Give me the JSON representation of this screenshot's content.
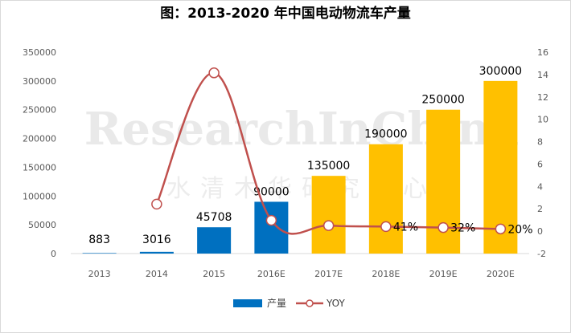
{
  "chart_data": {
    "type": "bar",
    "title": "图：2013-2020 年中国电动物流车产量",
    "categories": [
      "2013",
      "2014",
      "2015",
      "2016E",
      "2017E",
      "2018E",
      "2019E",
      "2020E"
    ],
    "series": [
      {
        "name": "产量",
        "type": "bar",
        "axis": "left",
        "values": [
          883,
          3016,
          45708,
          90000,
          135000,
          190000,
          250000,
          300000
        ],
        "colors": [
          "#0070c0",
          "#0070c0",
          "#0070c0",
          "#0070c0",
          "#ffc000",
          "#ffc000",
          "#ffc000",
          "#ffc000"
        ],
        "labels": [
          "883",
          "3016",
          "45708",
          "90000",
          "135000",
          "190000",
          "250000",
          "300000"
        ]
      },
      {
        "name": "YOY",
        "type": "line",
        "axis": "right",
        "x": [
          "2014",
          "2015",
          "2016E",
          "2017E",
          "2018E",
          "2019E",
          "2020E"
        ],
        "values": [
          2.42,
          14.15,
          0.97,
          0.5,
          0.41,
          0.32,
          0.2
        ],
        "labels": [
          "",
          "",
          "",
          "",
          "41%",
          "32%",
          "20%"
        ],
        "color": "#c0504d"
      }
    ],
    "y_left": {
      "ylim": [
        0,
        350000
      ],
      "ticks": [
        "0",
        "50000",
        "100000",
        "150000",
        "200000",
        "250000",
        "300000",
        "350000"
      ]
    },
    "y_right": {
      "ylim": [
        -2,
        16
      ],
      "ticks": [
        "-2",
        "0",
        "2",
        "4",
        "6",
        "8",
        "10",
        "12",
        "14",
        "16"
      ]
    },
    "legend": {
      "placement": "bottom",
      "items": [
        "产量",
        "YOY"
      ]
    },
    "grid": false,
    "watermark": {
      "main": "ResearchInChina",
      "sub": "水清木华研究中心"
    }
  }
}
